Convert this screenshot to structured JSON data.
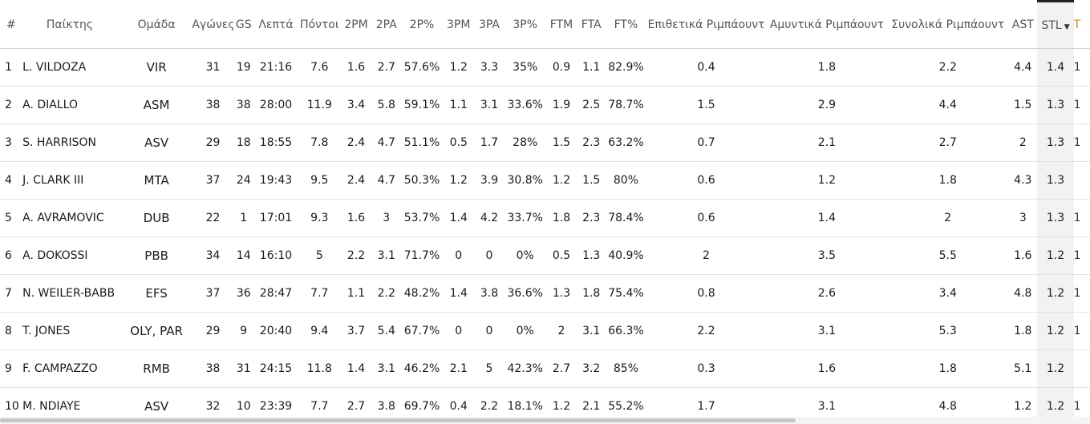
{
  "table": {
    "headers": {
      "rank": "#",
      "player": "Παίκτης",
      "team": "Ομάδα",
      "games": "Αγώνες",
      "gs": "GS",
      "minutes": "Λεπτά",
      "points": "Πόντοι",
      "fg2m": "2PM",
      "fg2a": "2PA",
      "fg2p": "2P%",
      "fg3m": "3PM",
      "fg3a": "3PA",
      "fg3p": "3P%",
      "ftm": "FTM",
      "fta": "FTA",
      "ftp": "FT%",
      "orb": "Επιθετικά Ριμπάουντ",
      "drb": "Αμυντικά Ριμπάουντ",
      "trb": "Συνολικά Ριμπάουντ",
      "ast": "AST",
      "stl": "STL",
      "stl_sort": "▼",
      "extra": "T"
    },
    "rows": [
      {
        "rank": "1",
        "player": "L. VILDOZA",
        "team": "VIR",
        "games": "31",
        "gs": "19",
        "minutes": "21:16",
        "points": "7.6",
        "fg2m": "1.6",
        "fg2a": "2.7",
        "fg2p": "57.6%",
        "fg3m": "1.2",
        "fg3a": "3.3",
        "fg3p": "35%",
        "ftm": "0.9",
        "fta": "1.1",
        "ftp": "82.9%",
        "orb": "0.4",
        "drb": "1.8",
        "trb": "2.2",
        "ast": "4.4",
        "stl": "1.4",
        "extra": "1"
      },
      {
        "rank": "2",
        "player": "A. DIALLO",
        "team": "ASM",
        "games": "38",
        "gs": "38",
        "minutes": "28:00",
        "points": "11.9",
        "fg2m": "3.4",
        "fg2a": "5.8",
        "fg2p": "59.1%",
        "fg3m": "1.1",
        "fg3a": "3.1",
        "fg3p": "33.6%",
        "ftm": "1.9",
        "fta": "2.5",
        "ftp": "78.7%",
        "orb": "1.5",
        "drb": "2.9",
        "trb": "4.4",
        "ast": "1.5",
        "stl": "1.3",
        "extra": "1"
      },
      {
        "rank": "3",
        "player": "S. HARRISON",
        "team": "ASV",
        "games": "29",
        "gs": "18",
        "minutes": "18:55",
        "points": "7.8",
        "fg2m": "2.4",
        "fg2a": "4.7",
        "fg2p": "51.1%",
        "fg3m": "0.5",
        "fg3a": "1.7",
        "fg3p": "28%",
        "ftm": "1.5",
        "fta": "2.3",
        "ftp": "63.2%",
        "orb": "0.7",
        "drb": "2.1",
        "trb": "2.7",
        "ast": "2",
        "stl": "1.3",
        "extra": "1"
      },
      {
        "rank": "4",
        "player": "J. CLARK III",
        "team": "MTA",
        "games": "37",
        "gs": "24",
        "minutes": "19:43",
        "points": "9.5",
        "fg2m": "2.4",
        "fg2a": "4.7",
        "fg2p": "50.3%",
        "fg3m": "1.2",
        "fg3a": "3.9",
        "fg3p": "30.8%",
        "ftm": "1.2",
        "fta": "1.5",
        "ftp": "80%",
        "orb": "0.6",
        "drb": "1.2",
        "trb": "1.8",
        "ast": "4.3",
        "stl": "1.3",
        "extra": ""
      },
      {
        "rank": "5",
        "player": "A. AVRAMOVIC",
        "team": "DUB",
        "games": "22",
        "gs": "1",
        "minutes": "17:01",
        "points": "9.3",
        "fg2m": "1.6",
        "fg2a": "3",
        "fg2p": "53.7%",
        "fg3m": "1.4",
        "fg3a": "4.2",
        "fg3p": "33.7%",
        "ftm": "1.8",
        "fta": "2.3",
        "ftp": "78.4%",
        "orb": "0.6",
        "drb": "1.4",
        "trb": "2",
        "ast": "3",
        "stl": "1.3",
        "extra": "1"
      },
      {
        "rank": "6",
        "player": "A. DOKOSSI",
        "team": "PBB",
        "games": "34",
        "gs": "14",
        "minutes": "16:10",
        "points": "5",
        "fg2m": "2.2",
        "fg2a": "3.1",
        "fg2p": "71.7%",
        "fg3m": "0",
        "fg3a": "0",
        "fg3p": "0%",
        "ftm": "0.5",
        "fta": "1.3",
        "ftp": "40.9%",
        "orb": "2",
        "drb": "3.5",
        "trb": "5.5",
        "ast": "1.6",
        "stl": "1.2",
        "extra": "1"
      },
      {
        "rank": "7",
        "player": "N. WEILER-BABB",
        "team": "EFS",
        "games": "37",
        "gs": "36",
        "minutes": "28:47",
        "points": "7.7",
        "fg2m": "1.1",
        "fg2a": "2.2",
        "fg2p": "48.2%",
        "fg3m": "1.4",
        "fg3a": "3.8",
        "fg3p": "36.6%",
        "ftm": "1.3",
        "fta": "1.8",
        "ftp": "75.4%",
        "orb": "0.8",
        "drb": "2.6",
        "trb": "3.4",
        "ast": "4.8",
        "stl": "1.2",
        "extra": "1"
      },
      {
        "rank": "8",
        "player": "T. JONES",
        "team": "OLY, PAR",
        "games": "29",
        "gs": "9",
        "minutes": "20:40",
        "points": "9.4",
        "fg2m": "3.7",
        "fg2a": "5.4",
        "fg2p": "67.7%",
        "fg3m": "0",
        "fg3a": "0",
        "fg3p": "0%",
        "ftm": "2",
        "fta": "3.1",
        "ftp": "66.3%",
        "orb": "2.2",
        "drb": "3.1",
        "trb": "5.3",
        "ast": "1.8",
        "stl": "1.2",
        "extra": "1"
      },
      {
        "rank": "9",
        "player": "F. CAMPAZZO",
        "team": "RMB",
        "games": "38",
        "gs": "31",
        "minutes": "24:15",
        "points": "11.8",
        "fg2m": "1.4",
        "fg2a": "3.1",
        "fg2p": "46.2%",
        "fg3m": "2.1",
        "fg3a": "5",
        "fg3p": "42.3%",
        "ftm": "2.7",
        "fta": "3.2",
        "ftp": "85%",
        "orb": "0.3",
        "drb": "1.6",
        "trb": "1.8",
        "ast": "5.1",
        "stl": "1.2",
        "extra": ""
      },
      {
        "rank": "10",
        "player": "M. NDIAYE",
        "team": "ASV",
        "games": "32",
        "gs": "10",
        "minutes": "23:39",
        "points": "7.7",
        "fg2m": "2.7",
        "fg2a": "3.8",
        "fg2p": "69.7%",
        "fg3m": "0.4",
        "fg3a": "2.2",
        "fg3p": "18.1%",
        "ftm": "1.2",
        "fta": "2.1",
        "ftp": "55.2%",
        "orb": "1.7",
        "drb": "3.1",
        "trb": "4.8",
        "ast": "1.2",
        "stl": "1.2",
        "extra": "1"
      }
    ]
  },
  "scrollbar": {
    "thumb_fraction": 0.73
  }
}
